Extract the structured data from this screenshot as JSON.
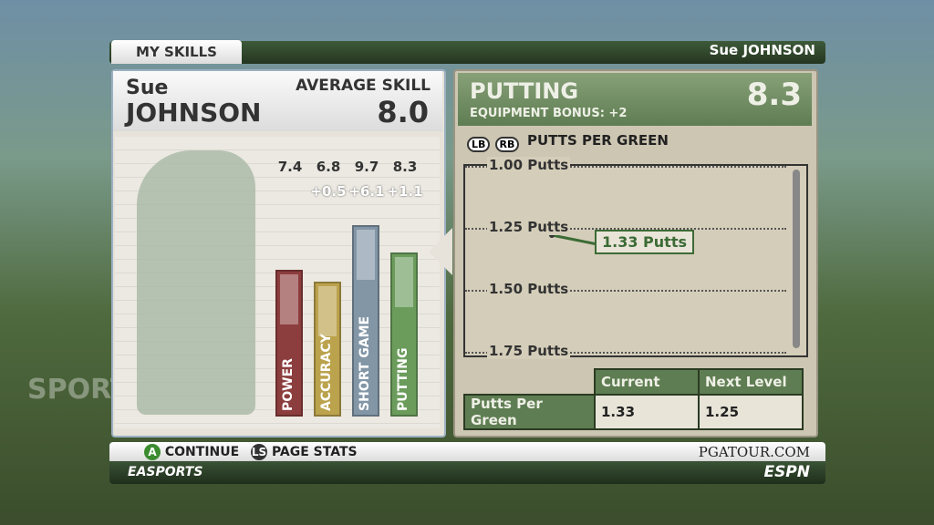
{
  "header": {
    "tab": "MY SKILLS",
    "player": "Sue JOHNSON"
  },
  "left_panel": {
    "first_name": "Sue",
    "last_name": "JOHNSON",
    "average_label": "AVERAGE SKILL",
    "average": "8.0",
    "skills": [
      {
        "name": "POWER",
        "value": 7.4,
        "color": "#8c3d3d"
      },
      {
        "name": "ACCURACY",
        "value": 6.8,
        "bonus": "+0.5",
        "color": "#bba24c"
      },
      {
        "name": "SHORT GAME",
        "value": 9.7,
        "bonus": "+6.1",
        "color": "#8296a6"
      },
      {
        "name": "PUTTING",
        "value": 8.3,
        "bonus": "+1.1",
        "color": "#6b9c5c"
      }
    ]
  },
  "right_panel": {
    "title": "PUTTING",
    "score": "8.3",
    "bonus": "EQUIPMENT BONUS: +2",
    "buttons": [
      "LB",
      "RB"
    ],
    "stat": "PUTTS PER GREEN",
    "ticks": [
      "1.00 Putts",
      "1.25 Putts",
      "1.50 Putts",
      "1.75 Putts"
    ],
    "marker": "1.33 Putts",
    "table": {
      "headers": [
        "Current",
        "Next Level"
      ],
      "row": [
        "Putts Per Green",
        "1.33",
        "1.25"
      ]
    }
  },
  "watermark": "SPORTS",
  "footer": {
    "buttons": [
      {
        "key": "A",
        "label": "CONTINUE"
      },
      {
        "key": "LS",
        "label": "PAGE STATS"
      }
    ],
    "site": "PGATOUR.COM",
    "brand": "EASPORTS",
    "network": "ESPN"
  }
}
